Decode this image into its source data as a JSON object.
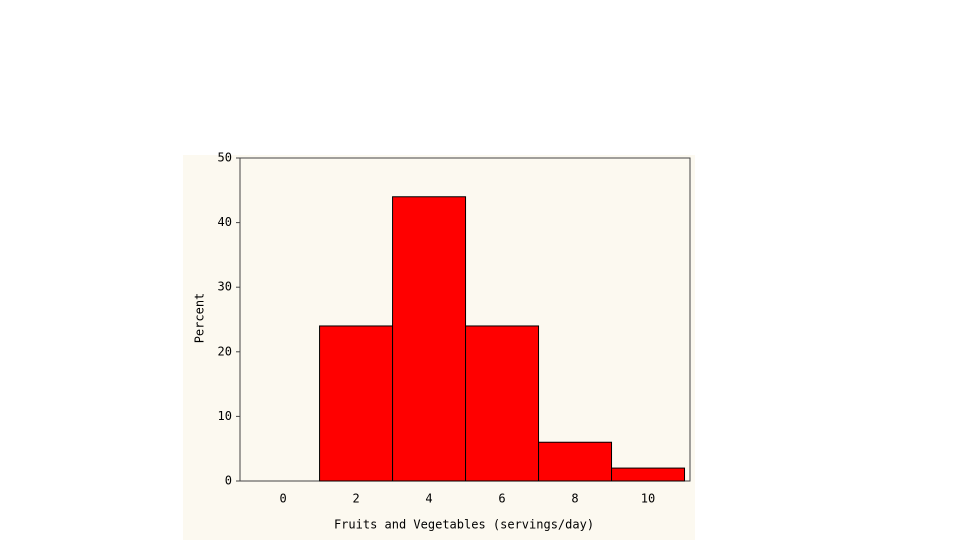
{
  "chart_data": {
    "type": "histogram",
    "xlabel": "Fruits and Vegetables (servings/day)",
    "ylabel": "Percent",
    "bins": [
      1,
      3,
      5,
      7,
      9,
      11
    ],
    "values": [
      24,
      44,
      24,
      6,
      2
    ],
    "color": "#ff0000",
    "xlim": [
      -1.18,
      11.15
    ],
    "xticks": [
      0,
      2,
      4,
      6,
      8,
      10
    ],
    "ylim": [
      0,
      50
    ],
    "yticks": [
      0,
      10,
      20,
      30,
      40,
      50
    ]
  }
}
